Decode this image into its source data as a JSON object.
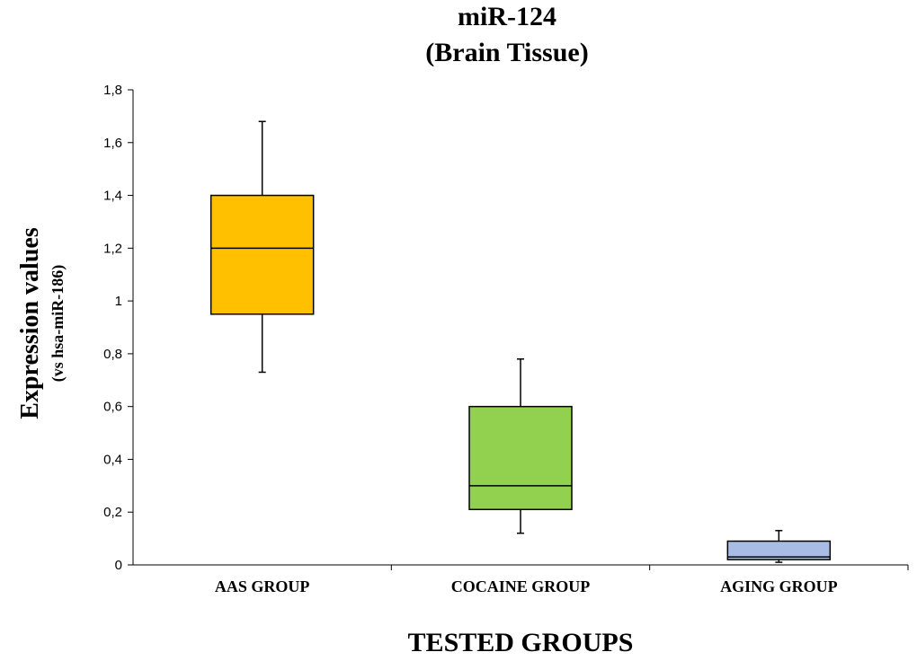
{
  "chart_data": {
    "type": "box",
    "title": "miR-124",
    "subtitle": "(Brain Tissue)",
    "xlabel": "TESTED GROUPS",
    "ylabel": "Expression values",
    "ylabel_sub": "(vs hsa-miR-186)",
    "ylim": [
      0,
      1.8
    ],
    "yticks": [
      {
        "value": 0,
        "label": "0"
      },
      {
        "value": 0.2,
        "label": "0,2"
      },
      {
        "value": 0.4,
        "label": "0,4"
      },
      {
        "value": 0.6,
        "label": "0,6"
      },
      {
        "value": 0.8,
        "label": "0,8"
      },
      {
        "value": 1.0,
        "label": "1"
      },
      {
        "value": 1.2,
        "label": "1,2"
      },
      {
        "value": 1.4,
        "label": "1,4"
      },
      {
        "value": 1.6,
        "label": "1,6"
      },
      {
        "value": 1.8,
        "label": "1,8"
      }
    ],
    "categories": [
      "AAS GROUP",
      "COCAINE GROUP",
      "AGING GROUP"
    ],
    "boxes": [
      {
        "category": "AAS GROUP",
        "min": 0.73,
        "q1": 0.95,
        "median": 1.2,
        "q3": 1.4,
        "max": 1.68,
        "color": "#FFC000"
      },
      {
        "category": "COCAINE GROUP",
        "min": 0.12,
        "q1": 0.21,
        "median": 0.3,
        "q3": 0.6,
        "max": 0.78,
        "color": "#92D050"
      },
      {
        "category": "AGING GROUP",
        "min": 0.01,
        "q1": 0.02,
        "median": 0.03,
        "q3": 0.09,
        "max": 0.13,
        "color": "#A9BCE4"
      }
    ],
    "grid": false,
    "legend": "none"
  }
}
